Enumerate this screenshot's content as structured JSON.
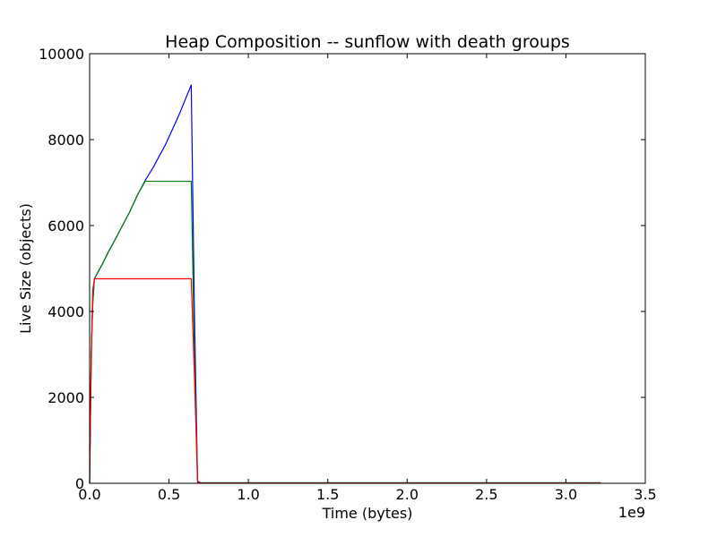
{
  "chart_data": {
    "type": "line",
    "title": "Heap Composition -- sunflow with death groups",
    "xlabel": "Time (bytes)",
    "ylabel": "Live Size (objects)",
    "x_offset_label": "1e9",
    "xlim": [
      0,
      3.5
    ],
    "ylim": [
      0,
      10000
    ],
    "xticks": [
      0.0,
      0.5,
      1.0,
      1.5,
      2.0,
      2.5,
      3.0,
      3.5
    ],
    "xtick_labels": [
      "0.0",
      "0.5",
      "1.0",
      "1.5",
      "2.0",
      "2.5",
      "3.0",
      "3.5"
    ],
    "yticks": [
      0,
      2000,
      4000,
      6000,
      8000,
      10000
    ],
    "ytick_labels": [
      "0",
      "2000",
      "4000",
      "6000",
      "8000",
      "10000"
    ],
    "grid": false,
    "legend": false,
    "series": [
      {
        "color": "#0000ff",
        "x": [
          0,
          0.005,
          0.01,
          0.02,
          0.03,
          0.05,
          0.08,
          0.12,
          0.15,
          0.2,
          0.25,
          0.3,
          0.35,
          0.4,
          0.48,
          0.56,
          0.64,
          0.66,
          0.68,
          0.7,
          1.0,
          2.0,
          3.0,
          3.22
        ],
        "y": [
          0,
          1500,
          3000,
          4200,
          4760,
          4900,
          5100,
          5400,
          5600,
          5950,
          6300,
          6700,
          7050,
          7350,
          7900,
          8550,
          9270,
          4000,
          50,
          10,
          10,
          10,
          10,
          10
        ]
      },
      {
        "color": "#008000",
        "x": [
          0,
          0.005,
          0.01,
          0.02,
          0.03,
          0.05,
          0.08,
          0.12,
          0.15,
          0.2,
          0.25,
          0.3,
          0.35,
          0.64,
          0.66,
          0.68,
          0.7,
          1.0,
          2.0,
          3.0,
          3.22
        ],
        "y": [
          0,
          1500,
          3000,
          4200,
          4760,
          4900,
          5100,
          5400,
          5600,
          5950,
          6300,
          6700,
          7030,
          7030,
          3000,
          30,
          10,
          10,
          10,
          10,
          10
        ]
      },
      {
        "color": "#ff0000",
        "x": [
          0,
          0.005,
          0.01,
          0.015,
          0.02,
          0.03,
          0.64,
          0.66,
          0.68,
          0.7,
          1.0,
          2.0,
          3.0,
          3.22
        ],
        "y": [
          0,
          1500,
          2700,
          3800,
          4500,
          4760,
          4760,
          2500,
          20,
          5,
          5,
          5,
          5,
          5
        ]
      }
    ]
  }
}
